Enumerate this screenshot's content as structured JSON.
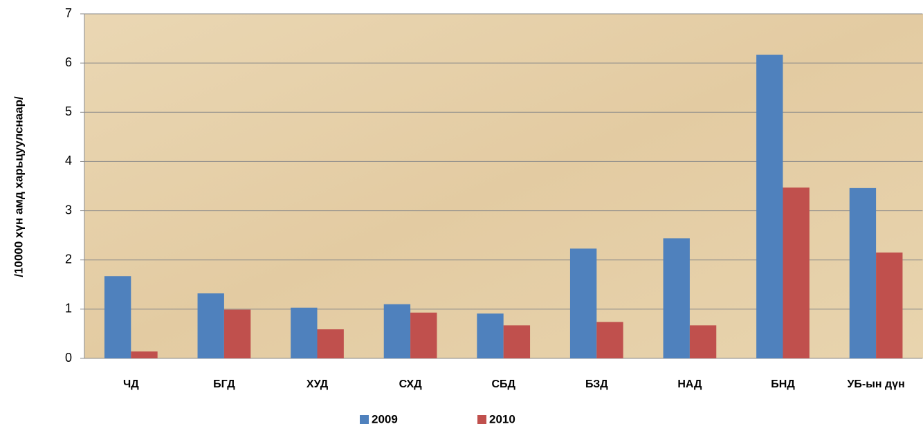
{
  "chart_data": {
    "type": "bar",
    "y_label": "/10000 хүн амд харьцуулснаар/",
    "categories": [
      "ЧД",
      "БГД",
      "ХУД",
      "СХД",
      "СБД",
      "БЗД",
      "НАД",
      "БНД",
      "УБ-ын дүн"
    ],
    "series": [
      {
        "name": "2009",
        "color": "#4f81bd",
        "values": [
          1.67,
          1.32,
          1.03,
          1.1,
          0.91,
          2.23,
          2.44,
          6.17,
          3.46
        ]
      },
      {
        "name": "2010",
        "color": "#c0504d",
        "values": [
          0.14,
          0.99,
          0.59,
          0.93,
          0.67,
          0.74,
          0.67,
          3.47,
          2.15
        ]
      }
    ],
    "ylim": [
      0,
      7
    ],
    "yticks": [
      0,
      1,
      2,
      3,
      4,
      5,
      6,
      7
    ],
    "grid": true,
    "legend": "bottom"
  }
}
